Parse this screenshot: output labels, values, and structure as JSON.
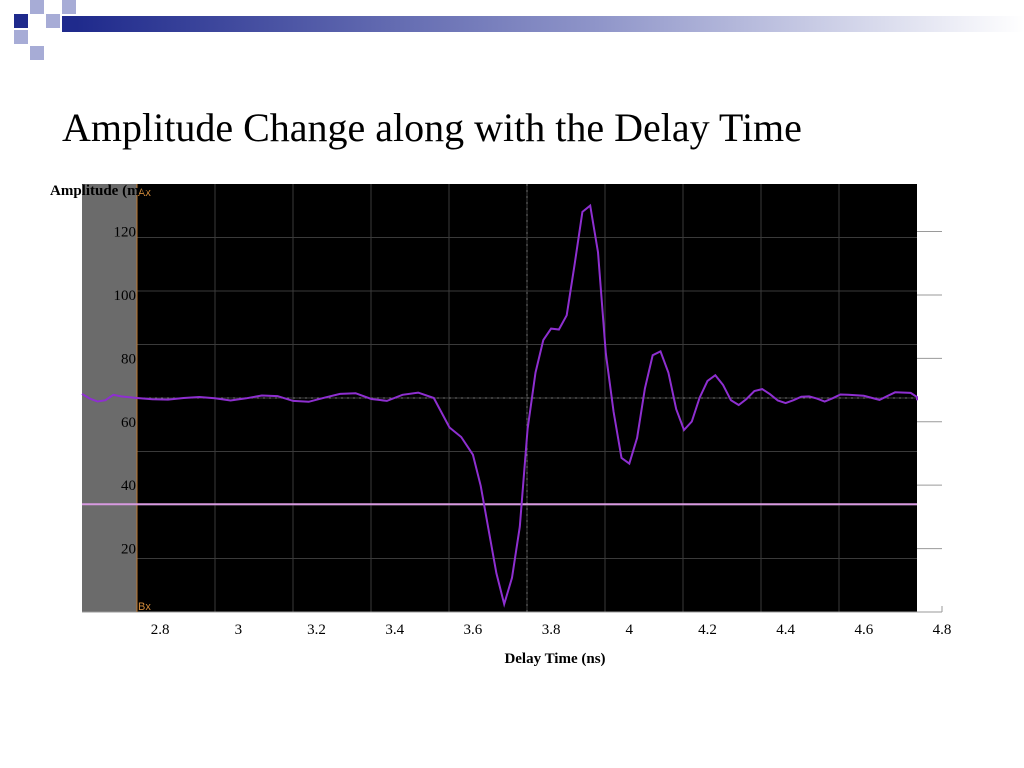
{
  "slide": {
    "title": "Amplitude Change along with the Delay Time"
  },
  "colors": {
    "deco_dark": "#1f2a8c",
    "deco_light": "#a7acd6",
    "plot_background": "#000000",
    "grid": "#3a3a3a",
    "trace": "#8e2fd0",
    "baseline": "#d79ae0",
    "gutter": "#6b6b6b",
    "scope_label": "#d08a3a"
  },
  "chart_data": {
    "type": "line",
    "xlabel": "Delay Time (ns)",
    "ylabel": "Amplitude (mV)",
    "xlim": [
      2.6,
      4.8
    ],
    "ylim": [
      0,
      135
    ],
    "x_ticks": [
      "2.8",
      "3",
      "3.2",
      "3.4",
      "3.6",
      "3.8",
      "4",
      "4.2",
      "4.4",
      "4.6",
      "4.8"
    ],
    "y_ticks": [
      "20",
      "40",
      "60",
      "80",
      "100",
      "120"
    ],
    "grid": true,
    "scope_markers": {
      "top": "Ax",
      "bottom": "Bx"
    },
    "reference_level": 34,
    "series": [
      {
        "x": [
          2.6,
          2.62,
          2.64,
          2.66,
          2.68,
          2.7,
          2.74,
          2.78,
          2.82,
          2.86,
          2.9,
          2.94,
          2.98,
          3.02,
          3.06,
          3.1,
          3.14,
          3.18,
          3.22,
          3.26,
          3.3,
          3.34,
          3.38,
          3.42,
          3.46,
          3.5,
          3.54,
          3.57,
          3.6,
          3.62,
          3.64,
          3.66,
          3.68,
          3.7,
          3.72,
          3.74,
          3.76,
          3.78,
          3.8,
          3.82,
          3.84,
          3.86,
          3.88,
          3.9,
          3.92,
          3.94,
          3.96,
          3.98,
          4.0,
          4.02,
          4.04,
          4.06,
          4.08,
          4.1,
          4.12,
          4.14,
          4.16,
          4.18,
          4.2,
          4.22,
          4.24,
          4.26,
          4.28,
          4.3,
          4.32,
          4.34,
          4.36,
          4.38,
          4.4,
          4.42,
          4.44,
          4.46,
          4.48,
          4.5,
          4.52,
          4.54,
          4.56,
          4.6,
          4.64,
          4.68,
          4.72,
          4.74,
          4.76,
          4.78,
          4.8
        ],
        "values": [
          68.8,
          67.3,
          66.4,
          66.8,
          68.5,
          68.0,
          67.5,
          67.1,
          67.0,
          67.5,
          67.8,
          67.4,
          66.7,
          67.4,
          68.3,
          68.1,
          66.6,
          66.3,
          67.6,
          68.8,
          69.0,
          67.2,
          66.6,
          68.5,
          69.2,
          67.5,
          58.2,
          55.2,
          49.6,
          39.8,
          26.1,
          12.2,
          2.5,
          10.8,
          26.9,
          57.8,
          75.5,
          85.8,
          89.4,
          89.1,
          93.6,
          109.4,
          126.2,
          128.2,
          113.5,
          81.6,
          63.1,
          48.6,
          46.8,
          54.9,
          70.5,
          81.0,
          82.2,
          75.5,
          64.0,
          57.4,
          60.1,
          67.6,
          72.9,
          74.7,
          71.6,
          66.8,
          65.3,
          67.2,
          69.7,
          70.3,
          68.7,
          66.7,
          65.9,
          66.8,
          67.9,
          68.0,
          67.3,
          66.4,
          67.4,
          68.6,
          68.5,
          68.2,
          66.9,
          69.3,
          69.1,
          67.8,
          67.0,
          66.8,
          67.2
        ]
      }
    ]
  }
}
